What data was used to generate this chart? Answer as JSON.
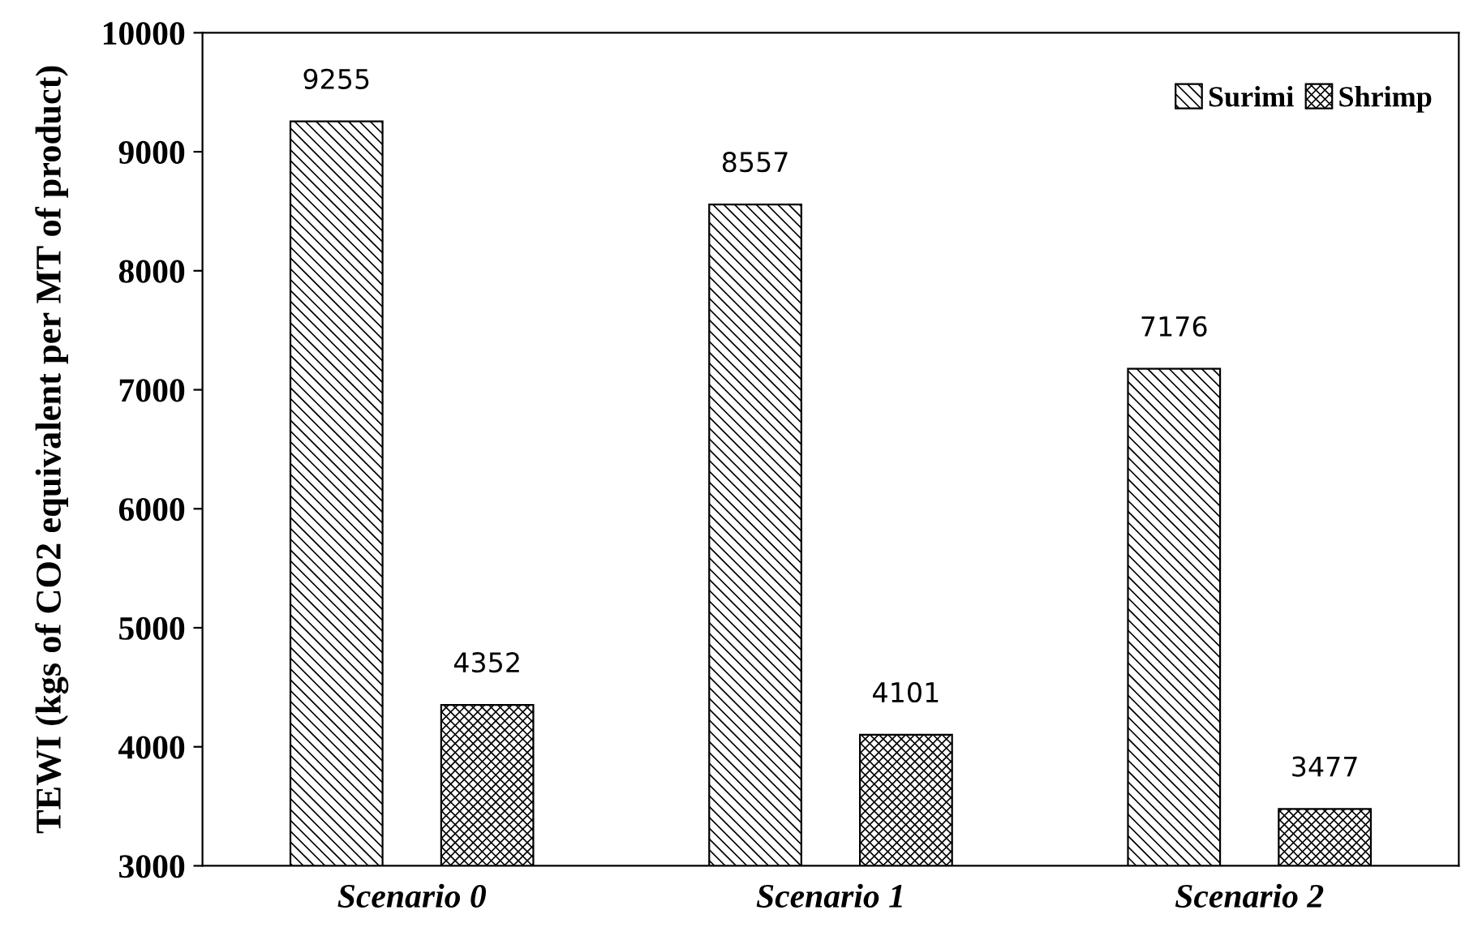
{
  "chart_data": {
    "type": "bar",
    "ylabel": "TEWI (kgs of CO2 equivalent per MT of product)",
    "categories": [
      "Scenario 0",
      "Scenario 1",
      "Scenario 2"
    ],
    "series": [
      {
        "name": "Surimi",
        "color": "#000000",
        "values": [
          9255,
          8557,
          7176
        ]
      },
      {
        "name": "Shrimp",
        "color": "#000000",
        "values": [
          4352,
          4101,
          3477
        ]
      }
    ],
    "ylim": [
      3000,
      10000
    ],
    "yticks": [
      3000,
      4000,
      5000,
      6000,
      7000,
      8000,
      9000,
      10000
    ],
    "data_labels": true,
    "grid": false,
    "legend": "top right"
  }
}
